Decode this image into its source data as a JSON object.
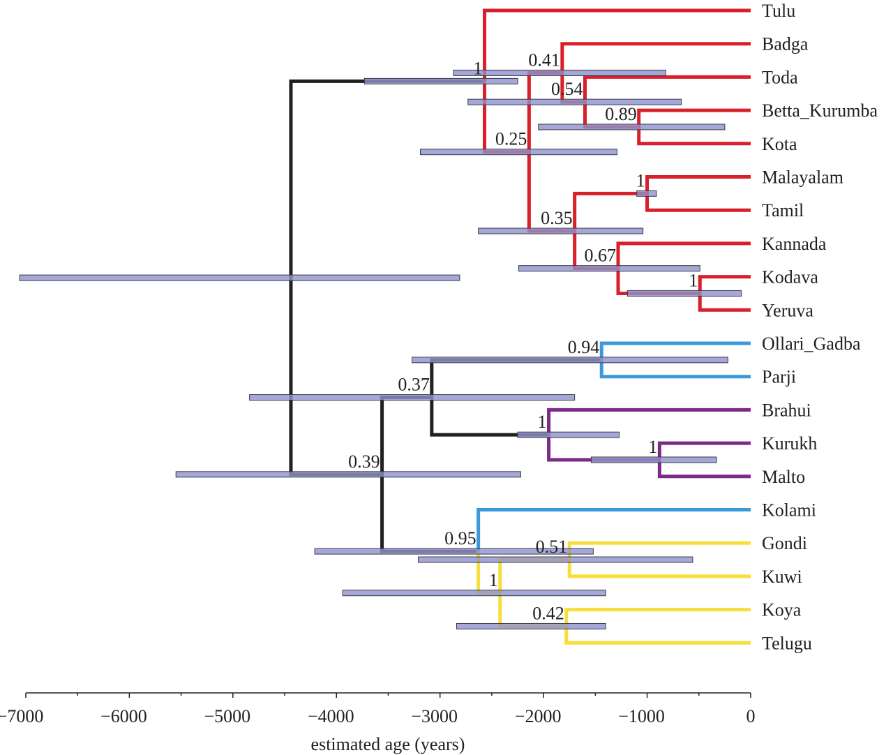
{
  "axis": {
    "label": "estimated age (years)",
    "range": [
      -7000,
      0
    ],
    "ticks": [
      -7000,
      -6000,
      -5000,
      -4000,
      -3000,
      -2000,
      -1000,
      0
    ],
    "tick_labels": [
      "−7000",
      "−6000",
      "−5000",
      "−4000",
      "−3000",
      "−2000",
      "−1000",
      "0"
    ]
  },
  "colors": {
    "black": "#231f20",
    "red": "#d9202a",
    "blue": "#3a9ad9",
    "purple": "#7b2a86",
    "yellow": "#f7df3a",
    "interval_bar": "#8e92cc"
  },
  "tree": {
    "age": -4440,
    "color": "black",
    "hpd": [
      -7060,
      -2810
    ],
    "children": [
      {
        "age": -2570,
        "support": "1",
        "color": "black",
        "hpd": [
          -3730,
          -2250
        ],
        "children": [
          {
            "leaf": "Tulu",
            "color": "red"
          },
          {
            "age": -2140,
            "support": "0.25",
            "color": "red",
            "hpd": [
              -3190,
              -1290
            ],
            "children": [
              {
                "age": -1820,
                "support": "0.41",
                "color": "red",
                "hpd": [
                  -2870,
                  -820
                ],
                "children": [
                  {
                    "leaf": "Badga",
                    "color": "red"
                  },
                  {
                    "age": -1600,
                    "support": "0.54",
                    "color": "red",
                    "hpd": [
                      -2730,
                      -670
                    ],
                    "children": [
                      {
                        "leaf": "Toda",
                        "color": "red"
                      },
                      {
                        "age": -1080,
                        "support": "0.89",
                        "color": "red",
                        "hpd": [
                          -2050,
                          -250
                        ],
                        "children": [
                          {
                            "leaf": "Betta_Kurumba",
                            "color": "red"
                          },
                          {
                            "leaf": "Kota",
                            "color": "red"
                          }
                        ]
                      }
                    ]
                  }
                ]
              },
              {
                "age": -1700,
                "support": "0.35",
                "color": "red",
                "hpd": [
                  -2630,
                  -1040
                ],
                "children": [
                  {
                    "age": -1000,
                    "support": "1",
                    "color": "red",
                    "hpd": [
                      -1100,
                      -910
                    ],
                    "children": [
                      {
                        "leaf": "Malayalam",
                        "color": "red"
                      },
                      {
                        "leaf": "Tamil",
                        "color": "red"
                      }
                    ]
                  },
                  {
                    "age": -1280,
                    "support": "0.67",
                    "color": "red",
                    "hpd": [
                      -2240,
                      -490
                    ],
                    "children": [
                      {
                        "leaf": "Kannada",
                        "color": "red"
                      },
                      {
                        "age": -490,
                        "support": "1",
                        "color": "red",
                        "hpd": [
                          -1190,
                          -90
                        ],
                        "children": [
                          {
                            "leaf": "Kodava",
                            "color": "red"
                          },
                          {
                            "leaf": "Yeruva",
                            "color": "red"
                          }
                        ]
                      }
                    ]
                  }
                ]
              }
            ]
          }
        ]
      },
      {
        "age": -3560,
        "support": "0.39",
        "color": "black",
        "hpd": [
          -5550,
          -2220
        ],
        "children": [
          {
            "age": -3080,
            "support": "0.37",
            "color": "black",
            "hpd": [
              -4840,
              -1700
            ],
            "children": [
              {
                "age": -1440,
                "support": "0.94",
                "color": "black",
                "hpd": [
                  -3270,
                  -220
                ],
                "children": [
                  {
                    "leaf": "Ollari_Gadba",
                    "color": "blue"
                  },
                  {
                    "leaf": "Parji",
                    "color": "blue"
                  }
                ]
              },
              {
                "age": -1950,
                "support": "1",
                "color": "black",
                "hpd": [
                  -2250,
                  -1270
                ],
                "children": [
                  {
                    "leaf": "Brahui",
                    "color": "purple"
                  },
                  {
                    "age": -880,
                    "support": "1",
                    "color": "purple",
                    "hpd": [
                      -1540,
                      -330
                    ],
                    "children": [
                      {
                        "leaf": "Kurukh",
                        "color": "purple"
                      },
                      {
                        "leaf": "Malto",
                        "color": "purple"
                      }
                    ]
                  }
                ]
              }
            ]
          },
          {
            "age": -2630,
            "support": "0.95",
            "color": "black",
            "hpd": [
              -4210,
              -1520
            ],
            "children": [
              {
                "leaf": "Kolami",
                "color": "blue"
              },
              {
                "age": -2420,
                "support": "1",
                "color": "yellow",
                "hpd": [
                  -3940,
                  -1400
                ],
                "children": [
                  {
                    "age": -1750,
                    "support": "0.51",
                    "color": "yellow",
                    "hpd": [
                      -3210,
                      -560
                    ],
                    "children": [
                      {
                        "leaf": "Gondi",
                        "color": "yellow"
                      },
                      {
                        "leaf": "Kuwi",
                        "color": "yellow"
                      }
                    ]
                  },
                  {
                    "age": -1780,
                    "support": "0.42",
                    "color": "yellow",
                    "hpd": [
                      -2840,
                      -1400
                    ],
                    "children": [
                      {
                        "leaf": "Koya",
                        "color": "yellow"
                      },
                      {
                        "leaf": "Telugu",
                        "color": "yellow"
                      }
                    ]
                  }
                ]
              }
            ]
          }
        ]
      }
    ]
  }
}
